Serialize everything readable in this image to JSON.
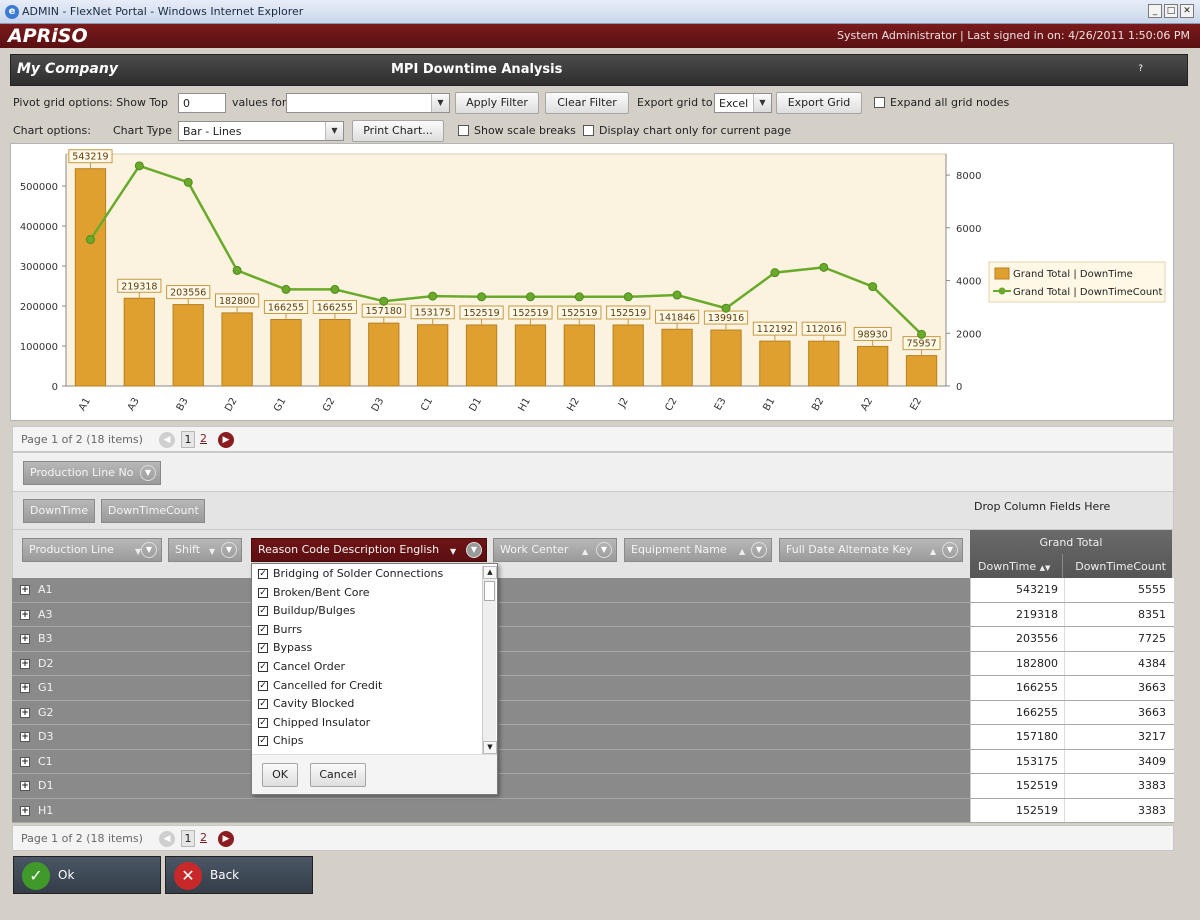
{
  "window": {
    "title": "ADMIN - FlexNet Portal - Windows Internet Explorer",
    "icon": "ie-icon",
    "controls": [
      "_",
      "□",
      "✕"
    ]
  },
  "banner": {
    "logo": "APRiSO",
    "user_info": "System Administrator | Last signed in on: 4/26/2011 1:50:06 PM"
  },
  "header": {
    "company": "My Company",
    "title": "MPI Downtime Analysis",
    "help": "?"
  },
  "pivot_options": {
    "label": "Pivot grid options: Show Top",
    "show_top_value": "0",
    "values_for_label": "values for",
    "values_for_value": "",
    "apply_filter": "Apply Filter",
    "clear_filter": "Clear Filter",
    "export_label": "Export grid to",
    "export_value": "Excel",
    "export_button": "Export Grid",
    "expand_all": "Expand all grid nodes"
  },
  "chart_options": {
    "label": "Chart options:",
    "type_label": "Chart Type",
    "type_value": "Bar - Lines",
    "print": "Print Chart...",
    "scale_breaks": "Show scale breaks",
    "current_page_only": "Display chart only for current page"
  },
  "colors": {
    "bar": "#e0a030",
    "line": "#6aaa2a",
    "plot_bg": "#fbf3e0",
    "brand": "#7a1a1c"
  },
  "chart_data": {
    "type": "bar",
    "categories": [
      "A1",
      "A3",
      "B3",
      "D2",
      "G1",
      "G2",
      "D3",
      "C1",
      "D1",
      "H1",
      "H2",
      "J2",
      "C2",
      "E3",
      "B1",
      "B2",
      "A2",
      "E2"
    ],
    "series": [
      {
        "name": "Grand Total | DownTime",
        "type": "bar",
        "axis": "left",
        "values": [
          543219,
          219318,
          203556,
          182800,
          166255,
          166255,
          157180,
          153175,
          152519,
          152519,
          152519,
          152519,
          141846,
          139916,
          112192,
          112016,
          98930,
          75957
        ]
      },
      {
        "name": "Grand Total | DownTimeCount",
        "type": "line",
        "axis": "right",
        "values": [
          5555,
          8351,
          7725,
          4384,
          3663,
          3663,
          3217,
          3409,
          3383,
          3383,
          3383,
          3383,
          3450,
          2950,
          4300,
          4500,
          3770,
          1960
        ]
      }
    ],
    "data_labels": [
      "543219",
      "219318",
      "203556",
      "182800",
      "166255",
      "166255",
      "157180",
      "153175",
      "152519",
      "152519",
      "152519",
      "152519",
      "141846",
      "139916",
      "112192",
      "112016",
      "98930",
      "75957"
    ],
    "y_ticks": [
      "0",
      "100000",
      "200000",
      "300000",
      "400000",
      "500000"
    ],
    "y2_ticks": [
      "0",
      "2000",
      "4000",
      "6000",
      "8000"
    ],
    "ylim": [
      0,
      580000
    ],
    "y2lim": [
      0,
      8800
    ],
    "legend_position": "right"
  },
  "pager_top": {
    "text": "Page 1 of 2 (18 items)",
    "page1": "1",
    "page2": "2"
  },
  "pager_bottom": {
    "text": "Page 1 of 2 (18 items)",
    "page1": "1",
    "page2": "2"
  },
  "filter_fields": [
    "Production Line No"
  ],
  "data_fields": [
    "DownTime",
    "DownTimeCount"
  ],
  "drop_column_text": "Drop Column Fields Here",
  "row_fields": [
    "Production Line",
    "Shift",
    "Reason Code Description English",
    "Work Center",
    "Equipment Name",
    "Full Date Alternate Key"
  ],
  "grand_total": {
    "title": "Grand Total",
    "col1": "DownTime",
    "col2": "DownTimeCount"
  },
  "rows": [
    {
      "name": "A1",
      "downtime": "543219",
      "count": "5555"
    },
    {
      "name": "A3",
      "downtime": "219318",
      "count": "8351"
    },
    {
      "name": "B3",
      "downtime": "203556",
      "count": "7725"
    },
    {
      "name": "D2",
      "downtime": "182800",
      "count": "4384"
    },
    {
      "name": "G1",
      "downtime": "166255",
      "count": "3663"
    },
    {
      "name": "G2",
      "downtime": "166255",
      "count": "3663"
    },
    {
      "name": "D3",
      "downtime": "157180",
      "count": "3217"
    },
    {
      "name": "C1",
      "downtime": "153175",
      "count": "3409"
    },
    {
      "name": "D1",
      "downtime": "152519",
      "count": "3383"
    },
    {
      "name": "H1",
      "downtime": "152519",
      "count": "3383"
    }
  ],
  "filter_popup": {
    "items": [
      "Bridging of Solder Connections",
      "Broken/Bent Core",
      "Buildup/Bulges",
      "Burrs",
      "Bypass",
      "Cancel Order",
      "Cancelled for Credit",
      "Cavity Blocked",
      "Chipped Insulator",
      "Chips"
    ],
    "ok": "OK",
    "cancel": "Cancel"
  },
  "footer": {
    "ok": "Ok",
    "back": "Back"
  }
}
